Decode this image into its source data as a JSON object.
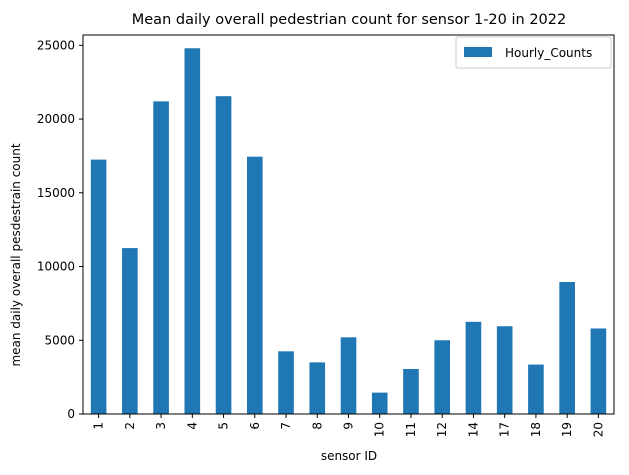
{
  "chart_data": {
    "type": "bar",
    "title": "Mean daily overall pedestrian count for sensor 1-20 in 2022",
    "xlabel": "sensor ID",
    "ylabel": "mean daily overall pesdestrain count",
    "categories": [
      "1",
      "2",
      "3",
      "4",
      "5",
      "6",
      "7",
      "8",
      "9",
      "10",
      "11",
      "12",
      "14",
      "17",
      "18",
      "19",
      "20"
    ],
    "series": [
      {
        "name": "Hourly_Counts",
        "values": [
          17250,
          11250,
          21200,
          24800,
          21550,
          17450,
          4250,
          3500,
          5200,
          1450,
          3050,
          5000,
          6250,
          5950,
          3350,
          8950,
          5800
        ]
      }
    ],
    "ylim": [
      0,
      25700
    ],
    "yticks": [
      0,
      5000,
      10000,
      15000,
      20000,
      25000
    ],
    "grid": false,
    "legend_position": "top-right",
    "colors": {
      "bar": "#1f77b4"
    }
  }
}
